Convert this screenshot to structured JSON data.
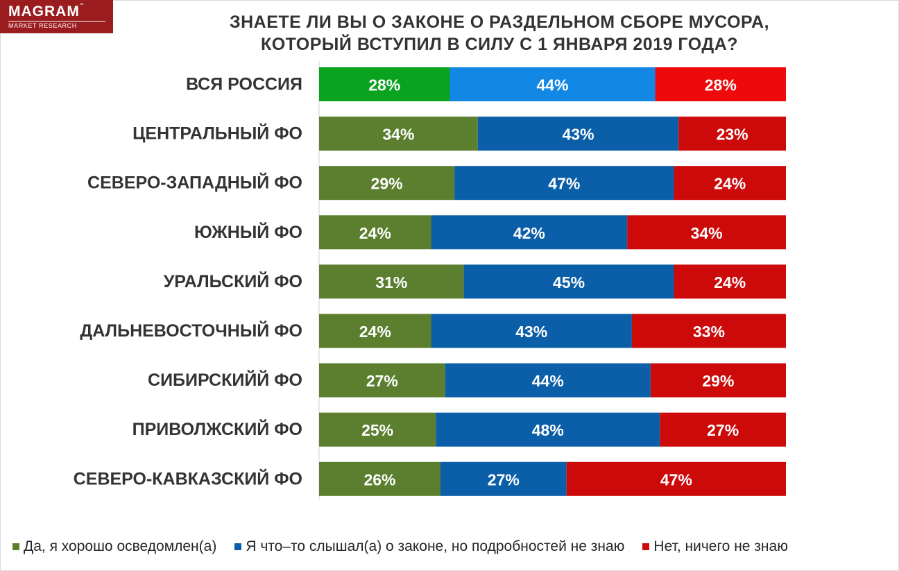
{
  "logo": {
    "brand": "MAGRAM",
    "trademark": "™",
    "subtitle": "MARKET RESEARCH"
  },
  "chart_data": {
    "type": "bar",
    "orientation": "horizontal",
    "stacked": true,
    "title_lines": [
      "ЗНАЕТЕ ЛИ ВЫ О ЗАКОНЕ О РАЗДЕЛЬНОМ СБОРЕ МУСОРА,",
      "КОТОРЫЙ ВСТУПИЛ В СИЛУ С 1 ЯНВАРЯ 2019 ГОДА?"
    ],
    "value_suffix": "%",
    "xlim": [
      0,
      100
    ],
    "categories": [
      "ВСЯ РОССИЯ",
      "ЦЕНТРАЛЬНЫЙ ФО",
      "СЕВЕРО-ЗАПАДНЫЙ ФО",
      "ЮЖНЫЙ ФО",
      "УРАЛЬСКИЙ ФО",
      "ДАЛЬНЕВОСТОЧНЫЙ ФО",
      "СИБИРСКИЙЙ ФО",
      "ПРИВОЛЖСКИЙ ФО",
      "СЕВЕРО-КАВКАЗСКИЙ ФО"
    ],
    "series": [
      {
        "name": "Да, я хорошо осведомлен(а)",
        "color": "#5b7f2f",
        "highlight_color": "#0aa21e",
        "values": [
          28,
          34,
          29,
          24,
          31,
          24,
          27,
          25,
          26
        ]
      },
      {
        "name": "Я что–то слышал(а) о законе, но подробностей не знаю",
        "color": "#0a5fa8",
        "highlight_color": "#1287e3",
        "values": [
          44,
          43,
          47,
          42,
          45,
          43,
          44,
          48,
          27
        ]
      },
      {
        "name": "Нет, ничего не знаю",
        "color": "#cc0a0a",
        "highlight_color": "#ee0a0a",
        "values": [
          28,
          23,
          24,
          34,
          24,
          33,
          29,
          27,
          47
        ]
      }
    ],
    "highlight_category_index": 0,
    "legend_position": "bottom",
    "grid": false
  }
}
